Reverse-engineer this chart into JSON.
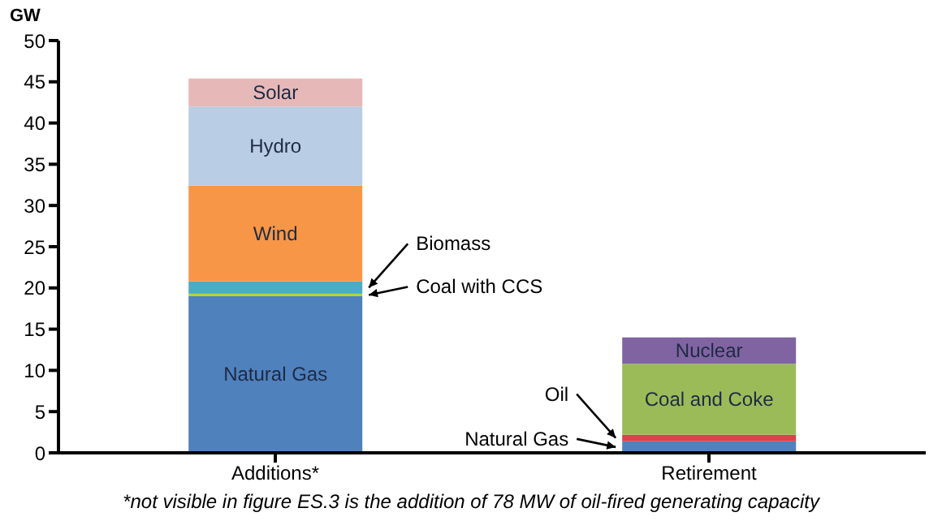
{
  "chart_data": {
    "type": "bar",
    "stacked": true,
    "ylabel": "GW",
    "categories": [
      "Additions*",
      "Retirement"
    ],
    "series": [
      {
        "name": "Natural Gas",
        "color": "#4f81bd",
        "values": [
          19.0,
          1.4
        ]
      },
      {
        "name": "Oil",
        "color": "#d9434a",
        "values": [
          null,
          0.8
        ]
      },
      {
        "name": "Coal with CCS",
        "color": "#b5d334",
        "values": [
          0.3,
          null
        ]
      },
      {
        "name": "Coal and Coke",
        "color": "#9bbb59",
        "values": [
          null,
          8.6
        ]
      },
      {
        "name": "Biomass",
        "color": "#4bacc6",
        "values": [
          1.5,
          null
        ]
      },
      {
        "name": "Wind",
        "color": "#f79646",
        "values": [
          11.6,
          null
        ]
      },
      {
        "name": "Hydro",
        "color": "#b9cde5",
        "values": [
          9.6,
          null
        ]
      },
      {
        "name": "Solar",
        "color": "#e6b9b8",
        "values": [
          3.4,
          null
        ]
      },
      {
        "name": "Nuclear",
        "color": "#8064a2",
        "values": [
          null,
          3.2
        ]
      }
    ],
    "ylim": [
      0,
      50
    ],
    "yticks": [
      0,
      5,
      10,
      15,
      20,
      25,
      30,
      35,
      40,
      45,
      50
    ],
    "grid": false,
    "legend": false,
    "annotations": [
      "*not visible in figure ES.3 is the addition of 78 MW of oil-fired generating capacity"
    ]
  }
}
